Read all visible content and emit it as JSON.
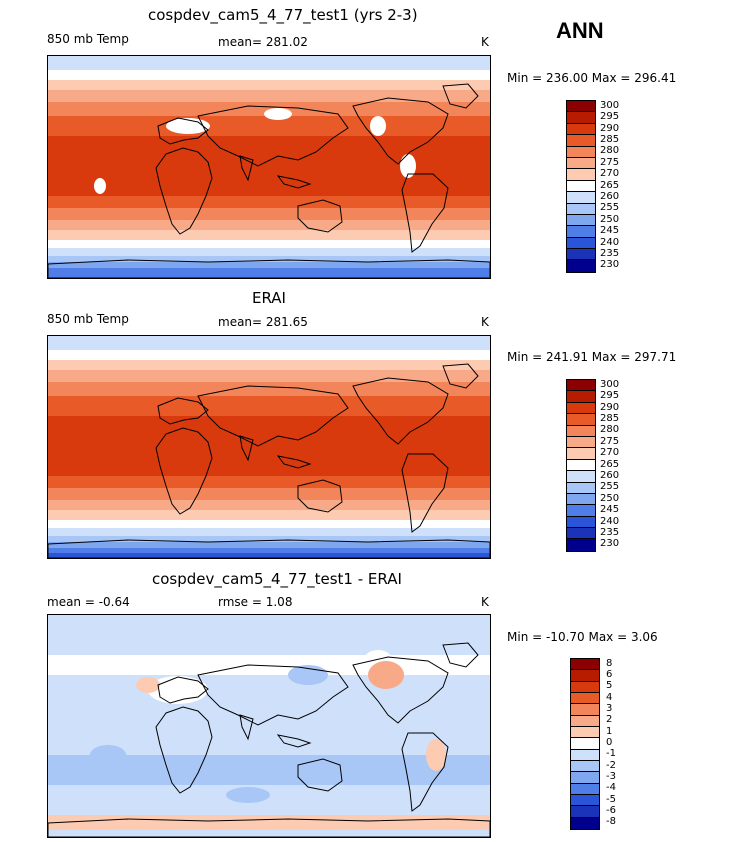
{
  "season": "ANN",
  "panels": [
    {
      "title": "cospdev_cam5_4_77_test1 (yrs 2-3)",
      "left_label": "850 mb Temp",
      "center_label": "mean= 281.02",
      "units": "K",
      "minmax": "Min = 236.00  Max = 296.41",
      "colorbar_labels": [
        "300",
        "295",
        "290",
        "285",
        "280",
        "275",
        "270",
        "265",
        "260",
        "255",
        "250",
        "245",
        "240",
        "235",
        "230"
      ],
      "colorbar_colors": [
        "#8b0000",
        "#b71c00",
        "#d83a0e",
        "#e85a28",
        "#f2855a",
        "#f8a988",
        "#fccbb2",
        "#ffffff",
        "#cfe0fb",
        "#a8c6f6",
        "#7ea7f0",
        "#4f7ee8",
        "#2a55d8",
        "#1a33b8",
        "#00008c"
      ],
      "map_style": "model"
    },
    {
      "title": "ERAI",
      "left_label": "850 mb Temp",
      "center_label": "mean= 281.65",
      "units": "K",
      "minmax": "Min = 241.91  Max = 297.71",
      "colorbar_labels": [
        "300",
        "295",
        "290",
        "285",
        "280",
        "275",
        "270",
        "265",
        "260",
        "255",
        "250",
        "245",
        "240",
        "235",
        "230"
      ],
      "colorbar_colors": [
        "#8b0000",
        "#b71c00",
        "#d83a0e",
        "#e85a28",
        "#f2855a",
        "#f8a988",
        "#fccbb2",
        "#ffffff",
        "#cfe0fb",
        "#a8c6f6",
        "#7ea7f0",
        "#4f7ee8",
        "#2a55d8",
        "#1a33b8",
        "#00008c"
      ],
      "map_style": "obs"
    },
    {
      "title": "cospdev_cam5_4_77_test1 - ERAI",
      "left_label": "mean =   -0.64",
      "center_label": "rmse =    1.08",
      "units": "K",
      "minmax": "Min = -10.70  Max =    3.06",
      "colorbar_labels": [
        "8",
        "6",
        "5",
        "4",
        "3",
        "2",
        "1",
        "0",
        "-1",
        "-2",
        "-3",
        "-4",
        "-5",
        "-6",
        "-8"
      ],
      "colorbar_colors": [
        "#8b0000",
        "#b71c00",
        "#d83a0e",
        "#e85a28",
        "#f2855a",
        "#f8a988",
        "#fccbb2",
        "#ffffff",
        "#cfe0fb",
        "#a8c6f6",
        "#7ea7f0",
        "#4f7ee8",
        "#2a55d8",
        "#1a33b8",
        "#00008c"
      ],
      "map_style": "diff"
    }
  ]
}
